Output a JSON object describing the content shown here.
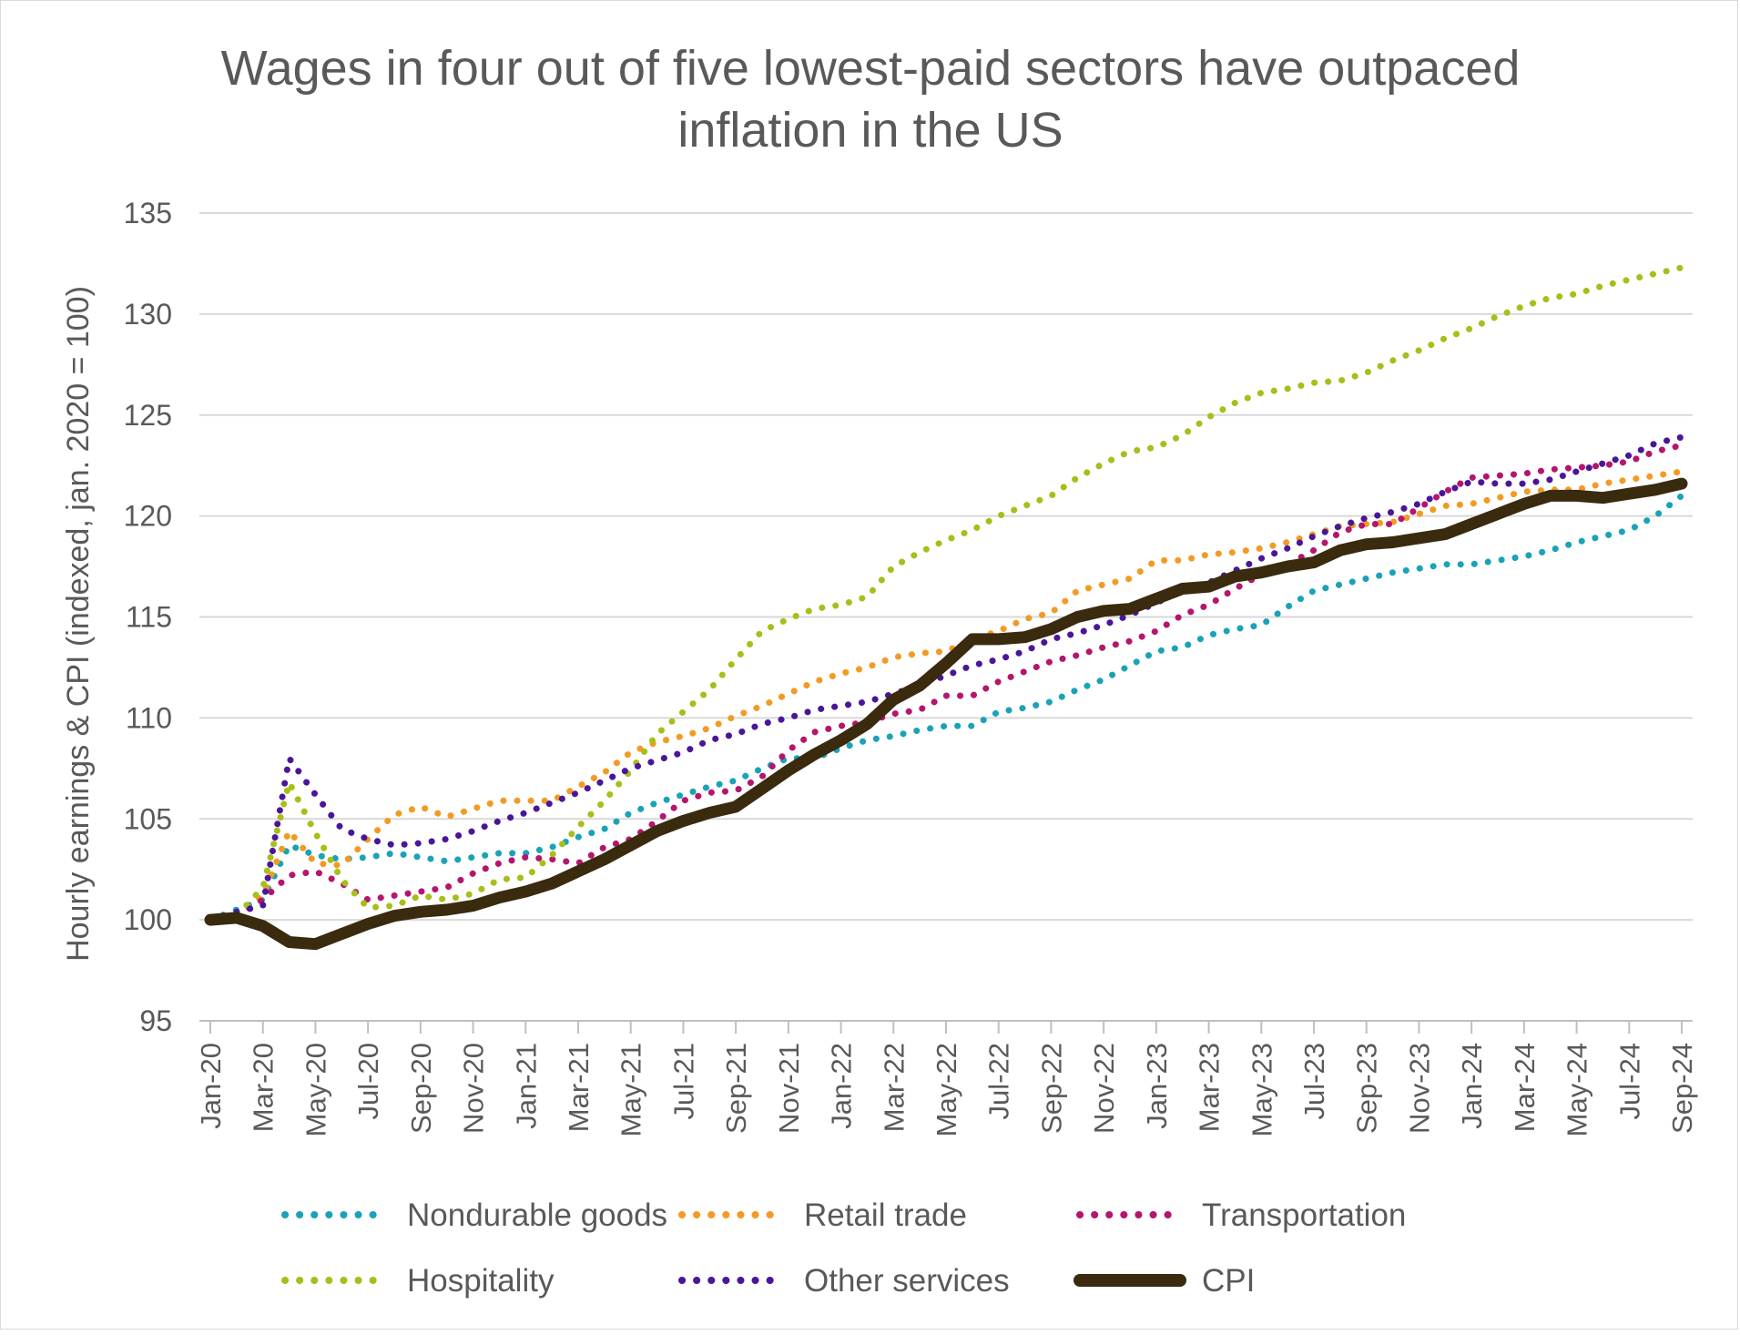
{
  "chart_data": {
    "type": "line",
    "title": "Wages in four out of five lowest-paid sectors have outpaced inflation in the US",
    "title_lines": [
      "Wages in four out of five lowest-paid sectors have outpaced",
      "inflation in the US"
    ],
    "xlabel": "",
    "ylabel": "Hourly earnings & CPI (indexed, jan. 2020 = 100)",
    "ylim": [
      95,
      135
    ],
    "yticks": [
      95,
      100,
      105,
      110,
      115,
      120,
      125,
      130,
      135
    ],
    "grid": true,
    "legend_position": "bottom",
    "x": [
      "Jan-20",
      "Feb-20",
      "Mar-20",
      "Apr-20",
      "May-20",
      "Jun-20",
      "Jul-20",
      "Aug-20",
      "Sep-20",
      "Oct-20",
      "Nov-20",
      "Dec-20",
      "Jan-21",
      "Feb-21",
      "Mar-21",
      "Apr-21",
      "May-21",
      "Jun-21",
      "Jul-21",
      "Aug-21",
      "Sep-21",
      "Oct-21",
      "Nov-21",
      "Dec-21",
      "Jan-22",
      "Feb-22",
      "Mar-22",
      "Apr-22",
      "May-22",
      "Jun-22",
      "Jul-22",
      "Aug-22",
      "Sep-22",
      "Oct-22",
      "Nov-22",
      "Dec-22",
      "Jan-23",
      "Feb-23",
      "Mar-23",
      "Apr-23",
      "May-23",
      "Jun-23",
      "Jul-23",
      "Aug-23",
      "Sep-23",
      "Oct-23",
      "Nov-23",
      "Dec-23",
      "Jan-24",
      "Feb-24",
      "Mar-24",
      "Apr-24",
      "May-24",
      "Jun-24",
      "Jul-24",
      "Aug-24",
      "Sep-24"
    ],
    "xtick_labels": [
      "Jan-20",
      "Mar-20",
      "May-20",
      "Jul-20",
      "Sep-20",
      "Nov-20",
      "Jan-21",
      "Mar-21",
      "May-21",
      "Jul-21",
      "Sep-21",
      "Nov-21",
      "Jan-22",
      "Mar-22",
      "May-22",
      "Jul-22",
      "Sep-22",
      "Nov-22",
      "Jan-23",
      "Mar-23",
      "May-23",
      "Jul-23",
      "Sep-23",
      "Nov-23",
      "Jan-24",
      "Mar-24",
      "May-24",
      "Jul-24",
      "Sep-24"
    ],
    "series": [
      {
        "name": "Nondurable goods",
        "color": "#1aa3b8",
        "style": "dotted",
        "values": [
          100,
          100.5,
          101,
          103.7,
          103.2,
          103.0,
          103.1,
          103.3,
          103.1,
          102.9,
          103.1,
          103.3,
          103.3,
          103.6,
          104.1,
          104.5,
          105.3,
          105.8,
          106.2,
          106.6,
          106.9,
          107.5,
          108.0,
          108.0,
          108.5,
          108.9,
          109.1,
          109.4,
          109.6,
          109.6,
          110.3,
          110.5,
          110.8,
          111.4,
          111.9,
          112.6,
          113.3,
          113.5,
          114.1,
          114.4,
          114.6,
          115.5,
          116.3,
          116.6,
          116.9,
          117.2,
          117.4,
          117.6,
          117.6,
          117.8,
          118.0,
          118.3,
          118.7,
          119.0,
          119.3,
          120.0,
          121.0
        ]
      },
      {
        "name": "Retail trade",
        "color": "#f29b24",
        "style": "dotted",
        "values": [
          100,
          100.2,
          101.2,
          104.4,
          102.8,
          102.7,
          104.0,
          105.2,
          105.6,
          105.1,
          105.5,
          105.9,
          105.9,
          105.9,
          106.6,
          107.3,
          108.3,
          108.8,
          109.1,
          109.5,
          110.1,
          110.6,
          111.2,
          111.8,
          112.2,
          112.5,
          113.0,
          113.2,
          113.3,
          113.9,
          114.3,
          114.9,
          115.2,
          116.3,
          116.6,
          116.9,
          117.8,
          117.8,
          118.1,
          118.2,
          118.4,
          118.7,
          119.1,
          119.5,
          119.6,
          119.7,
          120.1,
          120.5,
          120.6,
          120.9,
          121.2,
          121.3,
          121.3,
          121.6,
          121.8,
          122.0,
          122.2
        ]
      },
      {
        "name": "Transportation",
        "color": "#b5156d",
        "style": "dotted",
        "values": [
          100,
          100.2,
          101.0,
          102.2,
          102.4,
          101.8,
          101.0,
          101.2,
          101.4,
          101.6,
          102.3,
          102.8,
          103.1,
          103.0,
          102.8,
          103.6,
          104.0,
          104.9,
          105.9,
          106.3,
          106.4,
          107.1,
          108.4,
          109.3,
          109.6,
          109.8,
          110.2,
          110.4,
          111.1,
          111.1,
          111.8,
          112.3,
          112.8,
          113.1,
          113.5,
          113.8,
          114.3,
          115.1,
          115.6,
          116.4,
          117.1,
          117.6,
          118.3,
          119.2,
          119.6,
          119.6,
          120.4,
          121.2,
          121.9,
          122.0,
          122.1,
          122.3,
          122.4,
          122.5,
          122.7,
          123.2,
          123.5
        ]
      },
      {
        "name": "Hospitality",
        "color": "#a8be1a",
        "style": "dotted",
        "values": [
          100,
          100.2,
          101.6,
          106.8,
          104.3,
          102.0,
          100.6,
          100.7,
          101.2,
          101.0,
          101.3,
          102.0,
          102.1,
          103.2,
          104.6,
          105.9,
          107.4,
          109.2,
          110.3,
          111.4,
          112.9,
          114.3,
          114.9,
          115.4,
          115.6,
          116.0,
          117.5,
          118.2,
          118.8,
          119.3,
          120.0,
          120.5,
          121.0,
          121.9,
          122.6,
          123.2,
          123.4,
          124.0,
          124.9,
          125.6,
          126.1,
          126.3,
          126.6,
          126.7,
          127.1,
          127.7,
          128.2,
          128.8,
          129.3,
          129.9,
          130.4,
          130.8,
          131.0,
          131.4,
          131.7,
          132.0,
          132.3
        ]
      },
      {
        "name": "Other services",
        "color": "#4a1699",
        "style": "dotted",
        "values": [
          100,
          100.4,
          100.7,
          108.0,
          106.2,
          104.5,
          104.0,
          103.7,
          103.8,
          104.0,
          104.4,
          104.9,
          105.3,
          105.8,
          106.3,
          106.9,
          107.5,
          107.9,
          108.3,
          108.9,
          109.2,
          109.7,
          110.0,
          110.4,
          110.6,
          110.8,
          111.2,
          111.6,
          112.1,
          112.6,
          112.9,
          113.3,
          113.9,
          114.2,
          114.6,
          115.1,
          115.7,
          116.3,
          116.7,
          117.3,
          117.9,
          118.4,
          119.0,
          119.5,
          119.9,
          120.2,
          120.6,
          121.2,
          121.7,
          121.6,
          121.6,
          121.8,
          122.2,
          122.6,
          123.0,
          123.6,
          123.9
        ]
      },
      {
        "name": "CPI",
        "color": "#3a2a0e",
        "style": "solid",
        "values": [
          100,
          100.1,
          99.7,
          98.9,
          98.8,
          99.3,
          99.8,
          100.2,
          100.4,
          100.5,
          100.7,
          101.1,
          101.4,
          101.8,
          102.4,
          103.0,
          103.7,
          104.4,
          104.9,
          105.3,
          105.6,
          106.5,
          107.4,
          108.2,
          108.9,
          109.7,
          110.9,
          111.6,
          112.7,
          113.9,
          113.9,
          114.0,
          114.4,
          115.0,
          115.3,
          115.4,
          115.9,
          116.4,
          116.5,
          117.0,
          117.2,
          117.5,
          117.7,
          118.3,
          118.6,
          118.7,
          118.9,
          119.1,
          119.6,
          120.1,
          120.6,
          121.0,
          121.0,
          120.9,
          121.1,
          121.3,
          121.6
        ]
      }
    ]
  }
}
